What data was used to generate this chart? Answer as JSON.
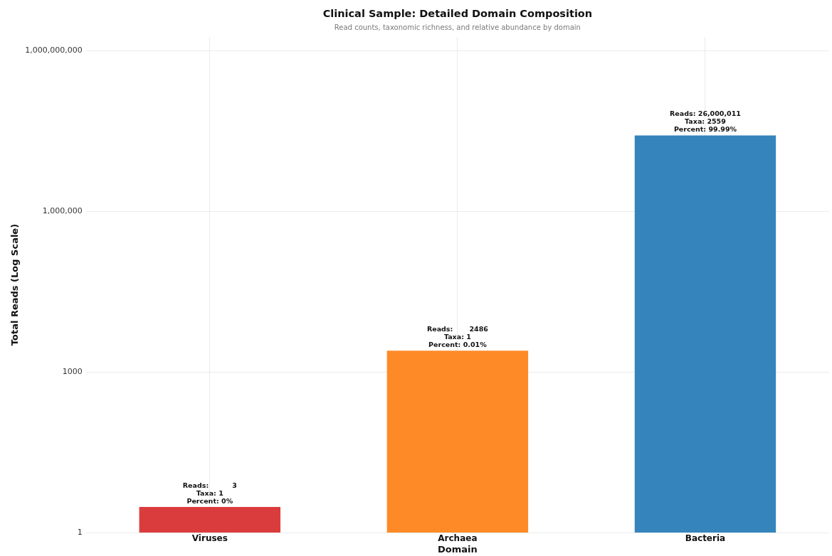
{
  "chart_data": {
    "type": "bar",
    "title": "Clinical Sample: Detailed Domain Composition",
    "subtitle": "Read counts, taxonomic richness, and relative abundance by domain",
    "xlabel": "Domain",
    "ylabel": "Total Reads (Log Scale)",
    "categories": [
      "Viruses",
      "Archaea",
      "Bacteria"
    ],
    "values": [
      3,
      2486,
      26000011
    ],
    "colors": [
      "#da3c3d",
      "#fe8a27",
      "#3584bc"
    ],
    "value_labels": [
      "Reads:          3\nTaxa: 1\nPercent: 0%",
      "Reads:       2486\nTaxa: 1\nPercent: 0.01%",
      "Reads: 26,000,011\nTaxa: 2559\nPercent: 99.99%"
    ],
    "ylim": [
      1,
      1800000000
    ],
    "yticks": [
      1,
      1000,
      {
        "value": 1000000,
        "label": "1,000,000"
      },
      {
        "value": 1000000000,
        "label": "1,000,000,000"
      }
    ],
    "log": true,
    "grid": true
  }
}
